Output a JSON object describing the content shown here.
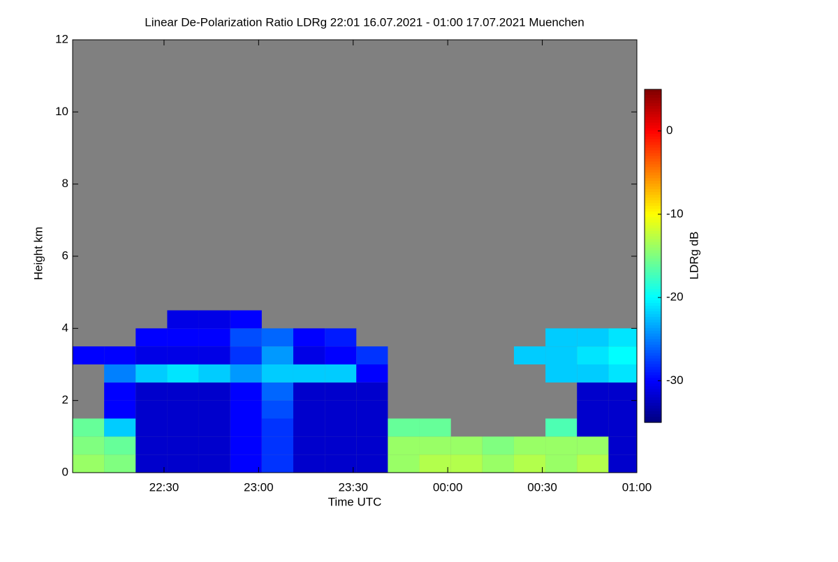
{
  "chart_data": {
    "type": "heatmap",
    "title": "Linear De-Polarization Ratio LDRg   22:01 16.07.2021 - 01:00 17.07.2021 Muenchen",
    "x_label": "Time UTC",
    "y_label": "Height km",
    "colorbar_label": "LDRg dB",
    "xlim": [
      1,
      180
    ],
    "xticks": [
      {
        "value": 30,
        "label": "22:30"
      },
      {
        "value": 60,
        "label": "23:00"
      },
      {
        "value": 90,
        "label": "23:30"
      },
      {
        "value": 120,
        "label": "00:00"
      },
      {
        "value": 150,
        "label": "00:30"
      },
      {
        "value": 180,
        "label": "01:00"
      }
    ],
    "ylim": [
      0,
      12
    ],
    "yticks": [
      0,
      2,
      4,
      6,
      8,
      10,
      12
    ],
    "zlim": [
      -35,
      5
    ],
    "zticks": [
      0,
      -10,
      -20,
      -30
    ],
    "no_signal_color": "#808080",
    "x": [
      6,
      16,
      26,
      36,
      46,
      56,
      66,
      76,
      86,
      96,
      106,
      116,
      126,
      136,
      146,
      156,
      166,
      176
    ],
    "y": [
      0.25,
      0.75,
      1.25,
      1.75,
      2.25,
      2.75,
      3.25,
      3.75,
      4.25,
      4.75
    ],
    "z": [
      [
        -14,
        -15,
        -32,
        -32,
        -32,
        -30,
        -28,
        -32,
        -32,
        -32,
        -14,
        -13,
        -13,
        -14,
        -13,
        -14,
        -13,
        -32
      ],
      [
        -15,
        -16,
        -32,
        -32,
        -32,
        -30,
        -28,
        -32,
        -32,
        -32,
        -14,
        -14,
        -14,
        -15,
        -14,
        -14,
        -14,
        -32
      ],
      [
        -16,
        -22,
        -32,
        -32,
        -32,
        -30,
        -28,
        -32,
        -32,
        -32,
        -16,
        -16,
        null,
        null,
        null,
        -17,
        -32,
        -32
      ],
      [
        null,
        -30,
        -32,
        -32,
        -32,
        -30,
        -27,
        -32,
        -32,
        -32,
        null,
        null,
        null,
        null,
        null,
        null,
        -32,
        -32
      ],
      [
        null,
        -30,
        -32,
        -32,
        -32,
        -30,
        -26,
        -32,
        -32,
        -32,
        null,
        null,
        null,
        null,
        null,
        null,
        -32,
        -32
      ],
      [
        null,
        -25,
        -22,
        -21,
        -22,
        -24,
        -22,
        -22,
        -22,
        -30,
        null,
        null,
        null,
        null,
        null,
        -22,
        -22,
        -21
      ],
      [
        -30,
        -30,
        -31,
        -31,
        -31,
        -28,
        -24,
        -31,
        -30,
        -28,
        null,
        null,
        null,
        null,
        -22,
        -22,
        -21,
        -20
      ],
      [
        null,
        null,
        -30,
        -30,
        -30,
        -27,
        -26,
        -30,
        -29,
        null,
        null,
        null,
        null,
        null,
        null,
        -22,
        -22,
        -21
      ],
      [
        null,
        null,
        null,
        -31,
        -31,
        -30,
        null,
        null,
        null,
        null,
        null,
        null,
        null,
        null,
        null,
        null,
        null,
        null
      ],
      [
        null,
        null,
        null,
        null,
        null,
        null,
        null,
        null,
        null,
        null,
        null,
        null,
        null,
        null,
        null,
        null,
        null,
        null
      ]
    ]
  }
}
